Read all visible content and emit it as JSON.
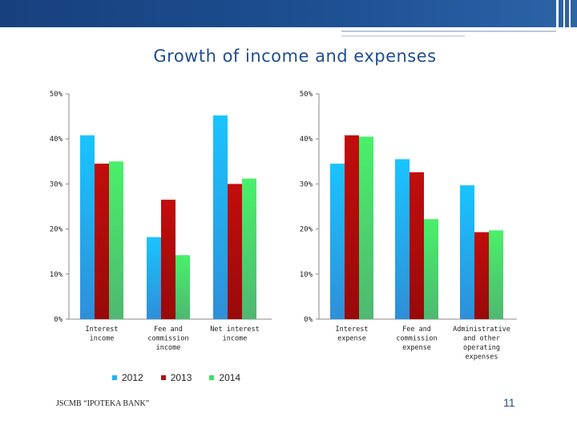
{
  "slide": {
    "title": "Growth of income and expenses",
    "footer": "JSCMB “IPOTEKA BANK”",
    "page_number": "11"
  },
  "colors": {
    "banner": "#1d4f91",
    "title": "#1f4e8c",
    "series_2012": "#1fb4f0",
    "series_2013": "#b30e10",
    "series_2014": "#3ee06a"
  },
  "chart_data": [
    {
      "type": "bar",
      "title": "Growth of income and expenses",
      "categories": [
        "Interest income",
        "Fee and commission income",
        "Net interest income"
      ],
      "y_ticks": [
        "0%",
        "10%",
        "20%",
        "30%",
        "40%",
        "50%"
      ],
      "ylim": [
        0,
        50
      ],
      "unit": "%",
      "series": [
        {
          "name": "2012",
          "values": [
            40.8,
            18.2,
            45.2
          ]
        },
        {
          "name": "2013",
          "values": [
            34.5,
            26.5,
            30.0
          ]
        },
        {
          "name": "2014",
          "values": [
            35.0,
            14.2,
            31.2
          ]
        }
      ],
      "legend": "bottom",
      "grid": false
    },
    {
      "type": "bar",
      "categories": [
        "Interest expense",
        "Fee and commission expense",
        "Administrative and other operating expenses"
      ],
      "y_ticks": [
        "0%",
        "10%",
        "20%",
        "30%",
        "40%",
        "50%"
      ],
      "ylim": [
        0,
        50
      ],
      "unit": "%",
      "series": [
        {
          "name": "2012",
          "values": [
            34.5,
            35.5,
            29.7
          ]
        },
        {
          "name": "2013",
          "values": [
            40.8,
            32.6,
            19.3
          ]
        },
        {
          "name": "2014",
          "values": [
            40.5,
            22.2,
            19.7
          ]
        }
      ],
      "grid": false
    }
  ],
  "legend": {
    "items": [
      "2012",
      "2013",
      "2014"
    ]
  }
}
